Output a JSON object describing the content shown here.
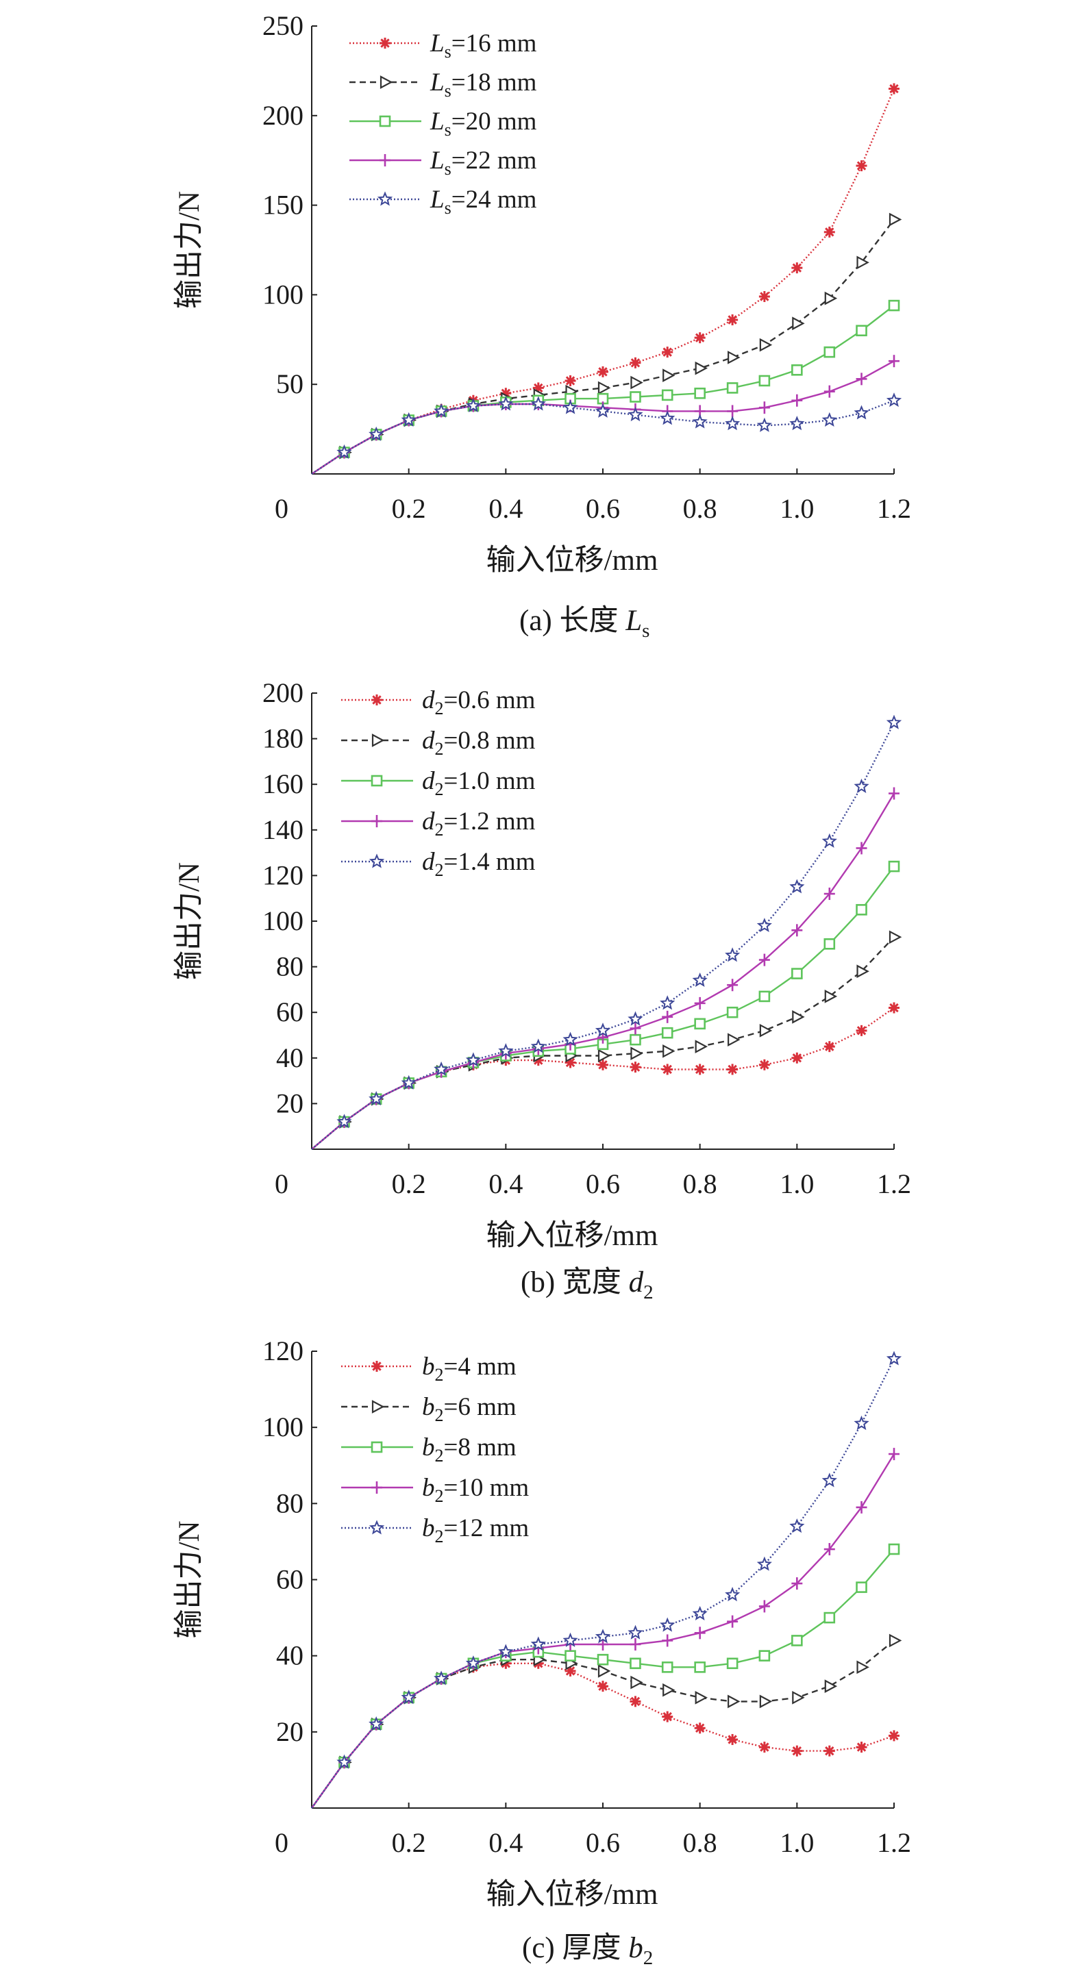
{
  "chart_data": [
    {
      "type": "line",
      "caption": {
        "prefix": "(a) 长度 ",
        "var": "L",
        "sub": "s",
        "suffix": ""
      },
      "xlabel": "输入位移/mm",
      "ylabel": "输出力/N",
      "xlim": [
        0,
        1.2
      ],
      "ylim": [
        0,
        250
      ],
      "xticks": [
        "0",
        "0.2",
        "0.4",
        "0.6",
        "0.8",
        "1.0",
        "1.2"
      ],
      "yticks": [
        "50",
        "100",
        "150",
        "200",
        "250"
      ],
      "x": [
        0,
        0.067,
        0.133,
        0.2,
        0.267,
        0.333,
        0.4,
        0.467,
        0.533,
        0.6,
        0.667,
        0.733,
        0.8,
        0.867,
        0.933,
        1.0,
        1.067,
        1.133,
        1.2
      ],
      "series": [
        {
          "var": "L",
          "sub": "s",
          "rest": "=16 mm",
          "color": "#d9313b",
          "dash": "2,3",
          "marker": "asterisk",
          "values": [
            0,
            12,
            22,
            30,
            36,
            41,
            45,
            48,
            52,
            57,
            62,
            68,
            76,
            86,
            99,
            115,
            135,
            172,
            215
          ]
        },
        {
          "var": "L",
          "sub": "s",
          "rest": "=18 mm",
          "color": "#333333",
          "dash": "9,6",
          "marker": "triangle",
          "values": [
            0,
            12,
            22,
            30,
            35,
            39,
            42,
            44,
            46,
            48,
            51,
            55,
            59,
            65,
            72,
            84,
            98,
            118,
            142
          ]
        },
        {
          "var": "L",
          "sub": "s",
          "rest": "=20 mm",
          "color": "#5ec45b",
          "dash": "",
          "marker": "square",
          "values": [
            0,
            12,
            22,
            30,
            35,
            38,
            40,
            41,
            42,
            42,
            43,
            44,
            45,
            48,
            52,
            58,
            68,
            80,
            94
          ]
        },
        {
          "var": "L",
          "sub": "s",
          "rest": "=22 mm",
          "color": "#b23ab0",
          "dash": "",
          "marker": "plus",
          "values": [
            0,
            12,
            22,
            30,
            35,
            38,
            39,
            39,
            38,
            37,
            36,
            35,
            35,
            35,
            37,
            41,
            46,
            53,
            63
          ]
        },
        {
          "var": "L",
          "sub": "s",
          "rest": "=24 mm",
          "color": "#3d4797",
          "dash": "2,3",
          "marker": "star",
          "values": [
            0,
            12,
            22,
            30,
            35,
            38,
            39,
            39,
            37,
            35,
            33,
            31,
            29,
            28,
            27,
            28,
            30,
            34,
            41
          ]
        }
      ]
    },
    {
      "type": "line",
      "caption": {
        "prefix": "(b) 宽度 ",
        "var": "d",
        "sub": "2",
        "suffix": ""
      },
      "xlabel": "输入位移/mm",
      "ylabel": "输出力/N",
      "xlim": [
        0,
        1.2
      ],
      "ylim": [
        0,
        200
      ],
      "xticks": [
        "0",
        "0.2",
        "0.4",
        "0.6",
        "0.8",
        "1.0",
        "1.2"
      ],
      "yticks": [
        "20",
        "40",
        "60",
        "80",
        "100",
        "120",
        "140",
        "160",
        "180",
        "200"
      ],
      "x": [
        0,
        0.067,
        0.133,
        0.2,
        0.267,
        0.333,
        0.4,
        0.467,
        0.533,
        0.6,
        0.667,
        0.733,
        0.8,
        0.867,
        0.933,
        1.0,
        1.067,
        1.133,
        1.2
      ],
      "series": [
        {
          "var": "d",
          "sub": "2",
          "rest": "=0.6 mm",
          "color": "#d9313b",
          "dash": "2,3",
          "marker": "asterisk",
          "values": [
            0,
            12,
            22,
            29,
            34,
            37,
            39,
            39,
            38,
            37,
            36,
            35,
            35,
            35,
            37,
            40,
            45,
            52,
            62
          ]
        },
        {
          "var": "d",
          "sub": "2",
          "rest": "=0.8 mm",
          "color": "#333333",
          "dash": "9,6",
          "marker": "triangle",
          "values": [
            0,
            12,
            22,
            29,
            34,
            37,
            40,
            41,
            41,
            41,
            42,
            43,
            45,
            48,
            52,
            58,
            67,
            78,
            93
          ]
        },
        {
          "var": "d",
          "sub": "2",
          "rest": "=1.0 mm",
          "color": "#5ec45b",
          "dash": "",
          "marker": "square",
          "values": [
            0,
            12,
            22,
            29,
            34,
            38,
            41,
            43,
            44,
            46,
            48,
            51,
            55,
            60,
            67,
            77,
            90,
            105,
            124
          ]
        },
        {
          "var": "d",
          "sub": "2",
          "rest": "=1.2 mm",
          "color": "#b23ab0",
          "dash": "",
          "marker": "plus",
          "values": [
            0,
            12,
            22,
            29,
            34,
            38,
            42,
            44,
            46,
            49,
            53,
            58,
            64,
            72,
            83,
            96,
            112,
            132,
            156
          ]
        },
        {
          "var": "d",
          "sub": "2",
          "rest": "=1.4 mm",
          "color": "#3d4797",
          "dash": "2,3",
          "marker": "star",
          "values": [
            0,
            12,
            22,
            29,
            35,
            39,
            43,
            45,
            48,
            52,
            57,
            64,
            74,
            85,
            98,
            115,
            135,
            159,
            187
          ]
        }
      ]
    },
    {
      "type": "line",
      "caption": {
        "prefix": "(c) 厚度 ",
        "var": "b",
        "sub": "2",
        "suffix": ""
      },
      "xlabel": "输入位移/mm",
      "ylabel": "输出力/N",
      "xlim": [
        0,
        1.2
      ],
      "ylim": [
        0,
        120
      ],
      "xticks": [
        "0",
        "0.2",
        "0.4",
        "0.6",
        "0.8",
        "1.0",
        "1.2"
      ],
      "yticks": [
        "20",
        "40",
        "60",
        "80",
        "100",
        "120"
      ],
      "x": [
        0,
        0.067,
        0.133,
        0.2,
        0.267,
        0.333,
        0.4,
        0.467,
        0.533,
        0.6,
        0.667,
        0.733,
        0.8,
        0.867,
        0.933,
        1.0,
        1.067,
        1.133,
        1.2
      ],
      "series": [
        {
          "var": "b",
          "sub": "2",
          "rest": "=4 mm",
          "color": "#d9313b",
          "dash": "2,3",
          "marker": "asterisk",
          "values": [
            0,
            12,
            22,
            29,
            34,
            37,
            38,
            38,
            36,
            32,
            28,
            24,
            21,
            18,
            16,
            15,
            15,
            16,
            19
          ]
        },
        {
          "var": "b",
          "sub": "2",
          "rest": "=6 mm",
          "color": "#333333",
          "dash": "9,6",
          "marker": "triangle",
          "values": [
            0,
            12,
            22,
            29,
            34,
            37,
            39,
            39,
            38,
            36,
            33,
            31,
            29,
            28,
            28,
            29,
            32,
            37,
            44
          ]
        },
        {
          "var": "b",
          "sub": "2",
          "rest": "=8 mm",
          "color": "#5ec45b",
          "dash": "",
          "marker": "square",
          "values": [
            0,
            12,
            22,
            29,
            34,
            38,
            40,
            41,
            40,
            39,
            38,
            37,
            37,
            38,
            40,
            44,
            50,
            58,
            68
          ]
        },
        {
          "var": "b",
          "sub": "2",
          "rest": "=10 mm",
          "color": "#b23ab0",
          "dash": "",
          "marker": "plus",
          "values": [
            0,
            12,
            22,
            29,
            34,
            38,
            41,
            42,
            43,
            43,
            43,
            44,
            46,
            49,
            53,
            59,
            68,
            79,
            93
          ]
        },
        {
          "var": "b",
          "sub": "2",
          "rest": "=12 mm",
          "color": "#3d4797",
          "dash": "2,3",
          "marker": "star",
          "values": [
            0,
            12,
            22,
            29,
            34,
            38,
            41,
            43,
            44,
            45,
            46,
            48,
            51,
            56,
            64,
            74,
            86,
            101,
            118
          ]
        }
      ]
    }
  ]
}
